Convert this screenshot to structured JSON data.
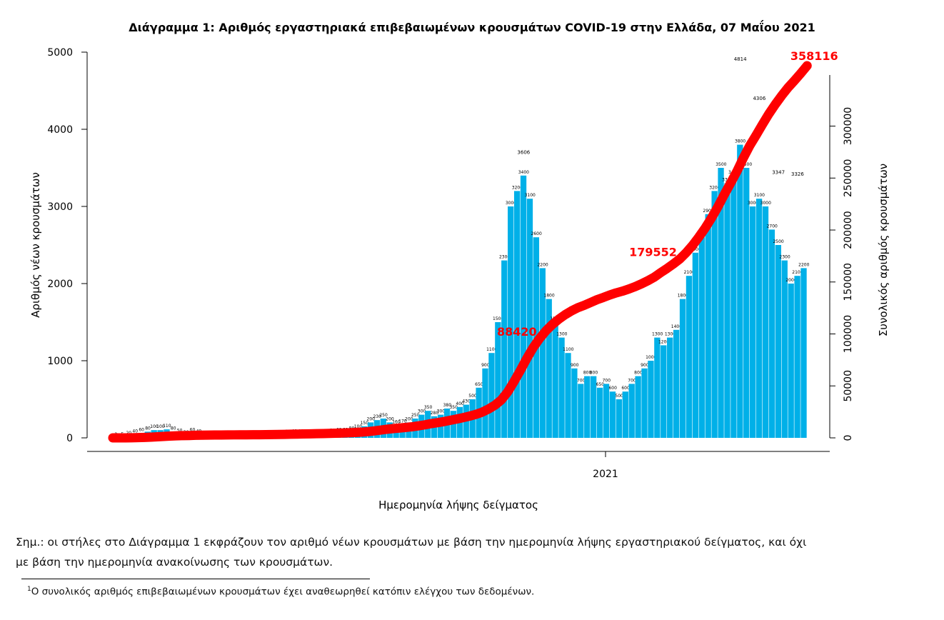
{
  "chart_data": {
    "type": "bar",
    "title": "Διάγραμμα 1: Αριθμός εργαστηριακά επιβεβαιωμένων κρουσμάτων COVID-19 στην Ελλάδα, 07 Μαΐου 2021",
    "xlabel": "Ημερομηνία λήψης δείγματος",
    "ylabel": "Αριθμός νέων κρουσμάτων",
    "y2label": "Συνολικός αριθμός κρουσμάτων",
    "ylim": [
      0,
      5000
    ],
    "yticks": [
      "0",
      "1000",
      "2000",
      "3000",
      "4000",
      "5000"
    ],
    "y2lim": [
      0,
      371000
    ],
    "y2ticks": [
      "0",
      "50000",
      "100000",
      "150000",
      "200000",
      "250000",
      "300000"
    ],
    "xticks": [
      "2021"
    ],
    "bin_days": 4,
    "values": [
      2,
      5,
      20,
      40,
      60,
      80,
      100,
      100,
      110,
      80,
      50,
      30,
      60,
      40,
      20,
      15,
      15,
      15,
      15,
      10,
      10,
      10,
      15,
      20,
      25,
      30,
      30,
      35,
      40,
      40,
      40,
      35,
      40,
      40,
      50,
      60,
      60,
      80,
      100,
      150,
      200,
      230,
      250,
      200,
      160,
      170,
      200,
      250,
      300,
      350,
      280,
      300,
      380,
      350,
      400,
      430,
      500,
      650,
      900,
      1100,
      1500,
      2300,
      3000,
      3200,
      3400,
      3100,
      2600,
      2200,
      1800,
      1500,
      1300,
      1100,
      900,
      700,
      800,
      800,
      650,
      700,
      600,
      500,
      600,
      700,
      800,
      900,
      1000,
      1300,
      1200,
      1300,
      1400,
      1800,
      2100,
      2400,
      2600,
      2900,
      3200,
      3500,
      3300,
      3400,
      3800,
      3500,
      3000,
      3100,
      3000,
      2700,
      2500,
      2300,
      2000,
      2100,
      2200
    ],
    "peak_labels": [
      {
        "bin": 64,
        "value": "3606"
      },
      {
        "bin": 98,
        "value": "4814"
      },
      {
        "bin": 101,
        "value": "4306"
      },
      {
        "bin": 104,
        "value": "3347"
      },
      {
        "bin": 107,
        "value": "3326"
      }
    ],
    "cumulative_total": 358116,
    "cumulative_labels": [
      {
        "bin": 66,
        "value": "88420"
      },
      {
        "bin": 88,
        "value": "179552"
      },
      {
        "bin": 108,
        "value": "358116"
      }
    ],
    "bar_color": "#00b0e8",
    "line_color": "#ff0000"
  },
  "note": "Σημ.: οι στήλες στο Διάγραμμα 1 εκφράζουν τον αριθμό νέων κρουσμάτων με βάση την ημερομηνία λήψης εργαστηριακού δείγματος, και όχι",
  "note2": "με βάση την ημερομηνία ανακοίνωσης των κρουσμάτων.",
  "footnote_mark": "1",
  "footnote": "Ο συνολικός αριθμός επιβεβαιωμένων κρουσμάτων έχει αναθεωρηθεί κατόπιν ελέγχου των δεδομένων."
}
